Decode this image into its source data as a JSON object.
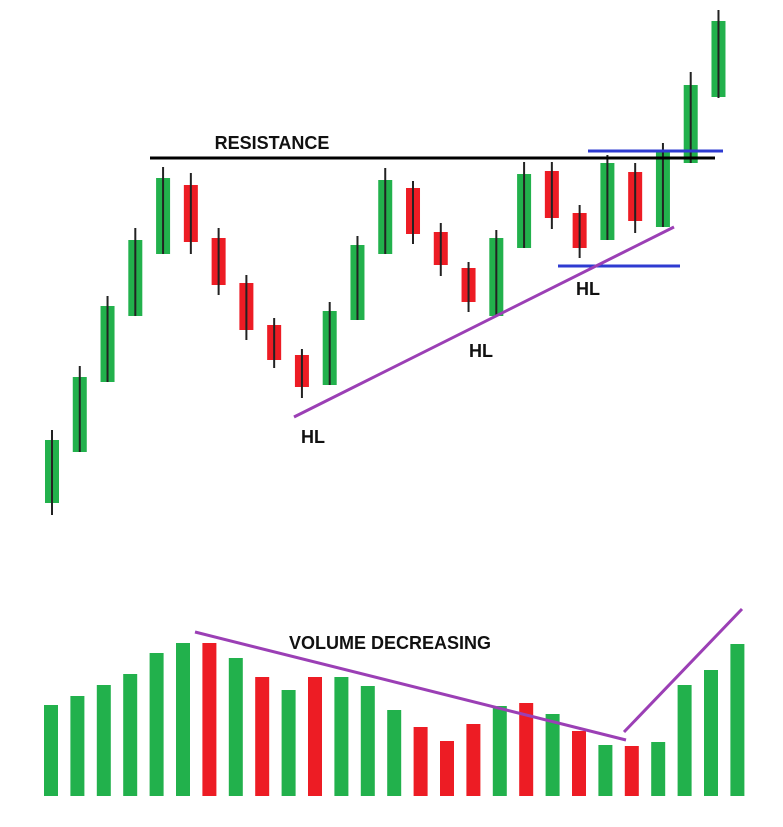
{
  "chart_data": [
    {
      "type": "candlestick",
      "ylim": [
        0,
        600
      ],
      "up_color": "#22b14c",
      "down_color": "#ed1c24",
      "annotations": [
        "RESISTANCE",
        "HL",
        "HL",
        "HL"
      ],
      "open": [
        97,
        148,
        218,
        284,
        346,
        415,
        362,
        317,
        275,
        245,
        215,
        280,
        346,
        412,
        368,
        332,
        284,
        352,
        429,
        387,
        360,
        428,
        373,
        437,
        503
      ],
      "high": [
        170,
        234,
        304,
        372,
        433,
        427,
        372,
        325,
        282,
        251,
        298,
        364,
        432,
        419,
        377,
        338,
        370,
        438,
        438,
        395,
        445,
        437,
        457,
        528,
        590
      ],
      "low": [
        85,
        148,
        218,
        284,
        346,
        346,
        305,
        260,
        232,
        202,
        215,
        280,
        346,
        356,
        324,
        288,
        284,
        352,
        371,
        342,
        360,
        367,
        373,
        437,
        502
      ],
      "close": [
        160,
        223,
        294,
        360,
        422,
        358,
        315,
        270,
        240,
        213,
        289,
        355,
        420,
        366,
        335,
        298,
        362,
        426,
        382,
        352,
        437,
        379,
        448,
        515,
        579
      ]
    },
    {
      "type": "bar",
      "ylim": [
        0,
        200
      ],
      "annotations": [
        "VOLUME DECREASING"
      ],
      "values": [
        91,
        100,
        111,
        122,
        143,
        153,
        153,
        138,
        119,
        106,
        119,
        119,
        110,
        86,
        69,
        55,
        72,
        90,
        93,
        82,
        65,
        51,
        50,
        54,
        111,
        126,
        152
      ],
      "colors": [
        "#22b14c",
        "#22b14c",
        "#22b14c",
        "#22b14c",
        "#22b14c",
        "#22b14c",
        "#ed1c24",
        "#22b14c",
        "#ed1c24",
        "#22b14c",
        "#ed1c24",
        "#22b14c",
        "#22b14c",
        "#22b14c",
        "#ed1c24",
        "#ed1c24",
        "#ed1c24",
        "#22b14c",
        "#ed1c24",
        "#22b14c",
        "#ed1c24",
        "#22b14c",
        "#ed1c24",
        "#22b14c",
        "#22b14c",
        "#22b14c",
        "#22b14c"
      ]
    }
  ]
}
